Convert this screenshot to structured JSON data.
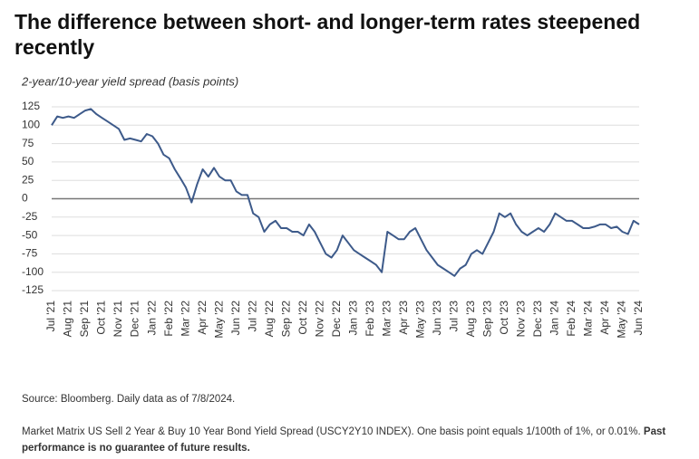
{
  "chart_data": {
    "type": "line",
    "title": "The difference between short- and longer-term rates steepened recently",
    "subtitle": "2-year/10-year yield spread (basis points)",
    "categories": [
      "Jul '21",
      null,
      null,
      "Aug '21",
      null,
      null,
      "Sep '21",
      null,
      null,
      "Oct '21",
      null,
      null,
      "Nov '21",
      null,
      null,
      "Dec '21",
      null,
      null,
      "Jan '22",
      null,
      null,
      "Feb '22",
      null,
      null,
      "Mar '22",
      null,
      null,
      "Apr '22",
      null,
      null,
      "May '22",
      null,
      null,
      "Jun '22",
      null,
      null,
      "Jul '22",
      null,
      null,
      "Aug '22",
      null,
      null,
      "Sep '22",
      null,
      null,
      "Oct '22",
      null,
      null,
      "Nov '22",
      null,
      null,
      "Dec '22",
      null,
      null,
      "Jan '23",
      null,
      null,
      "Feb '23",
      null,
      null,
      "Mar '23",
      null,
      null,
      "Apr '23",
      null,
      null,
      "May '23",
      null,
      null,
      "Jun '23",
      null,
      null,
      "Jul '23",
      null,
      null,
      "Aug '23",
      null,
      null,
      "Sep '23",
      null,
      null,
      "Oct '23",
      null,
      null,
      "Nov '23",
      null,
      null,
      "Dec '23",
      null,
      null,
      "Jan '24",
      null,
      null,
      "Feb '24",
      null,
      null,
      "Mar '24",
      null,
      null,
      "Apr '24",
      null,
      null,
      "May '24",
      null,
      null,
      "Jun '24"
    ],
    "series": [
      {
        "name": "2-year/10-year yield spread",
        "color": "#3d5a8a",
        "values": [
          100,
          112,
          110,
          112,
          110,
          115,
          120,
          122,
          115,
          110,
          105,
          100,
          95,
          80,
          82,
          80,
          78,
          88,
          85,
          75,
          60,
          55,
          40,
          28,
          15,
          -5,
          20,
          40,
          30,
          42,
          30,
          25,
          25,
          10,
          5,
          5,
          -20,
          -25,
          -45,
          -35,
          -30,
          -40,
          -40,
          -45,
          -45,
          -50,
          -35,
          -45,
          -60,
          -75,
          -80,
          -70,
          -50,
          -60,
          -70,
          -75,
          -80,
          -85,
          -90,
          -100,
          -45,
          -50,
          -55,
          -55,
          -45,
          -40,
          -55,
          -70,
          -80,
          -90,
          -95,
          -100,
          -105,
          -95,
          -90,
          -75,
          -70,
          -75,
          -60,
          -45,
          -20,
          -25,
          -20,
          -35,
          -45,
          -50,
          -45,
          -40,
          -45,
          -35,
          -20,
          -25,
          -30,
          -30,
          -35,
          -40,
          -40,
          -38,
          -35,
          -35,
          -40,
          -38,
          -45,
          -48,
          -30,
          -35
        ]
      }
    ],
    "ylim": [
      -125,
      125
    ],
    "yticks": [
      125,
      100,
      75,
      50,
      25,
      0,
      -25,
      -50,
      -75,
      -100,
      -125
    ],
    "grid": true,
    "source": "Source: Bloomberg. Daily data as of 7/8/2024.",
    "note": "Market Matrix US Sell 2 Year & Buy 10 Year Bond Yield Spread (USCY2Y10 INDEX). One basis point equals 1/100th of 1%, or 0.01%.",
    "note_bold": "Past performance is no guarantee of future results."
  }
}
